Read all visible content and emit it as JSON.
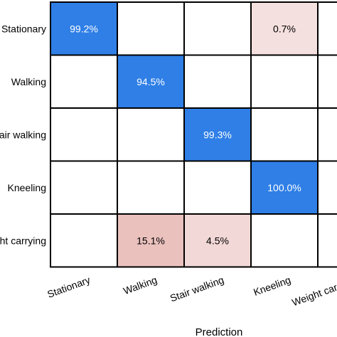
{
  "chart_data": {
    "type": "heatmap",
    "title": "",
    "xlabel": "Prediction",
    "ylabel": "",
    "rows": [
      "Stationary",
      "Walking",
      "Stair walking",
      "Kneeling",
      "Weight carrying"
    ],
    "columns": [
      "Stationary",
      "Walking",
      "Stair walking",
      "Kneeling",
      "Weight carrying"
    ],
    "values": [
      [
        99.2,
        null,
        null,
        0.7,
        null
      ],
      [
        null,
        94.5,
        null,
        null,
        null
      ],
      [
        null,
        null,
        99.3,
        null,
        null
      ],
      [
        null,
        null,
        null,
        100.0,
        null
      ],
      [
        null,
        15.1,
        4.5,
        null,
        null
      ]
    ],
    "cell_labels": [
      [
        "99.2%",
        "",
        "",
        "0.7%",
        ""
      ],
      [
        "",
        "94.5%",
        "",
        "",
        ""
      ],
      [
        "",
        "",
        "99.3%",
        "",
        ""
      ],
      [
        "",
        "",
        "",
        "100.0%",
        ""
      ],
      [
        "",
        "15.1%",
        "4.5%",
        "",
        ""
      ]
    ],
    "colors": {
      "diagonal": "#2f7fe6",
      "off_diagonal": "#f3dcda",
      "empty": "#ffffff",
      "border": "#000000",
      "diagonal_text": "#ffffff",
      "off_diagonal_text": "#000000"
    }
  }
}
